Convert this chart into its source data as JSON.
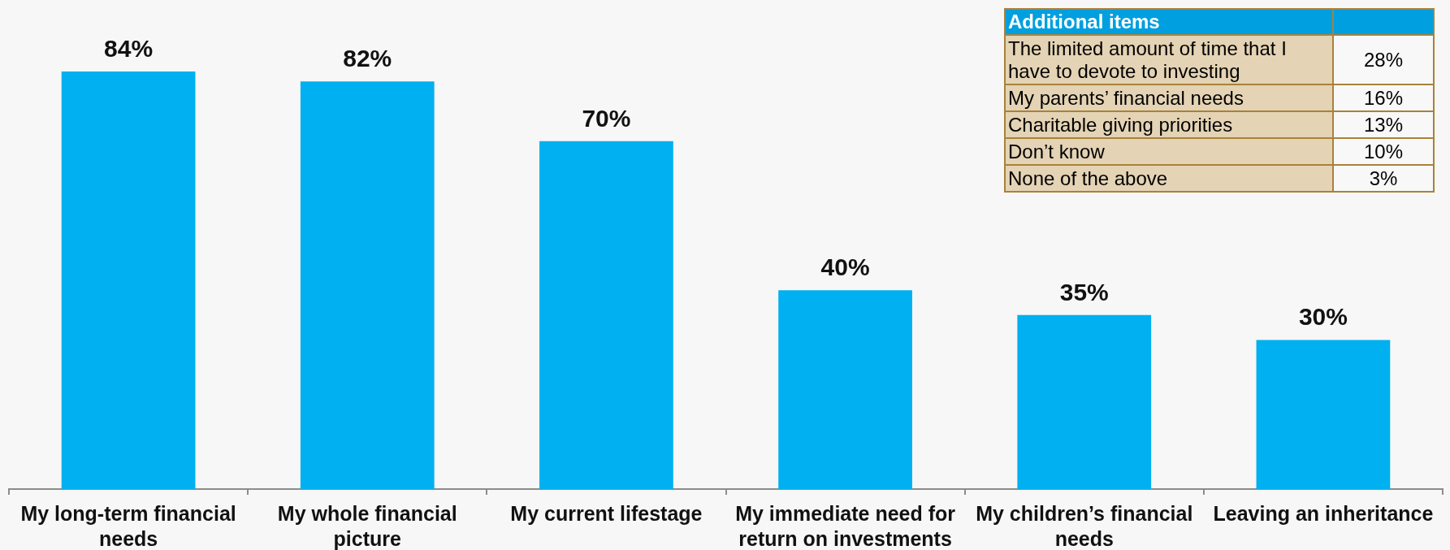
{
  "chart_data": {
    "type": "bar",
    "categories": [
      "My long-term financial needs",
      "My whole financial picture",
      "My current lifestage",
      "My immediate need for return on investments",
      "My children’s financial needs",
      "Leaving an inheritance"
    ],
    "values": [
      84,
      82,
      70,
      40,
      35,
      30
    ],
    "value_labels": [
      "84%",
      "82%",
      "70%",
      "40%",
      "35%",
      "30%"
    ],
    "color": "#00b0f0",
    "tick_labels": "x",
    "annotations": [
      "Additional items",
      "The limited amount of time that I have to devote to investing",
      "28%",
      "My parents’ financial needs",
      "16%",
      "Charitable giving priorities",
      "13%",
      "Don’t know",
      "10%",
      "None of the above",
      "3%"
    ]
  }
}
